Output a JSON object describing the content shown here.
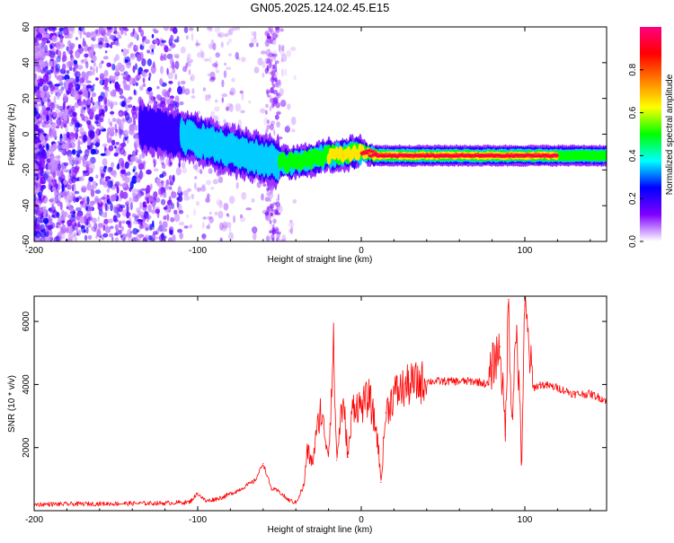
{
  "title": "GN05.2025.124.02.45.E15",
  "chart_data": [
    {
      "type": "heatmap",
      "xlabel": "Height of straight line (km)",
      "ylabel": "Frequency (Hz)",
      "xlim": [
        -200,
        150
      ],
      "ylim": [
        -60,
        60
      ],
      "xticks": [
        -200,
        -100,
        0,
        100
      ],
      "yticks": [
        -60,
        -40,
        -20,
        0,
        20,
        40,
        60
      ],
      "colorbar": {
        "label": "Normalized spectral amplitude",
        "range": [
          0,
          1
        ],
        "ticks": [
          0.0,
          0.2,
          0.4,
          0.6,
          0.8
        ],
        "colormap": [
          "#ffffff",
          "#8000ff",
          "#0000ff",
          "#00ffff",
          "#00ff00",
          "#ffff00",
          "#ff8000",
          "#ff0000",
          "#ff0080"
        ]
      },
      "ridge": {
        "x": [
          -135,
          -120,
          -100,
          -80,
          -60,
          -50,
          -40,
          -30,
          -20,
          -10,
          0,
          10,
          20,
          40,
          60,
          80,
          100,
          120,
          150
        ],
        "y": [
          4,
          1,
          -3,
          -9,
          -14,
          -16,
          -16,
          -14,
          -12,
          -11,
          -10,
          -12,
          -12,
          -12,
          -12,
          -12,
          -12,
          -12,
          -12
        ]
      }
    },
    {
      "type": "line",
      "xlabel": "Height of straight line (km)",
      "ylabel": "SNR (10 * v/v)",
      "xlim": [
        -200,
        150
      ],
      "ylim": [
        0,
        6800
      ],
      "xticks": [
        -200,
        -100,
        0,
        100
      ],
      "yticks": [
        2000,
        4000,
        6000
      ],
      "series": [
        {
          "color": "#ff0000",
          "x": [
            -200,
            -180,
            -160,
            -140,
            -120,
            -105,
            -100,
            -95,
            -85,
            -75,
            -65,
            -60,
            -55,
            -50,
            -45,
            -40,
            -35,
            -33,
            -30,
            -25,
            -20,
            -17,
            -15,
            -12,
            -10,
            -8,
            -5,
            0,
            5,
            10,
            12,
            15,
            20,
            30,
            40,
            60,
            70,
            78,
            80,
            85,
            88,
            90,
            92,
            95,
            98,
            100,
            105,
            110,
            120,
            130,
            140,
            150
          ],
          "y": [
            200,
            210,
            220,
            230,
            240,
            270,
            550,
            300,
            420,
            650,
            950,
            1500,
            700,
            600,
            350,
            250,
            800,
            1900,
            1500,
            3200,
            1800,
            5200,
            1600,
            3300,
            2900,
            1700,
            3400,
            3300,
            3600,
            2300,
            900,
            3100,
            3700,
            4000,
            4100,
            4100,
            4100,
            4000,
            4600,
            5200,
            2400,
            6700,
            3000,
            5800,
            1600,
            6500,
            3900,
            4000,
            3900,
            3700,
            3700,
            3500
          ]
        }
      ]
    }
  ]
}
